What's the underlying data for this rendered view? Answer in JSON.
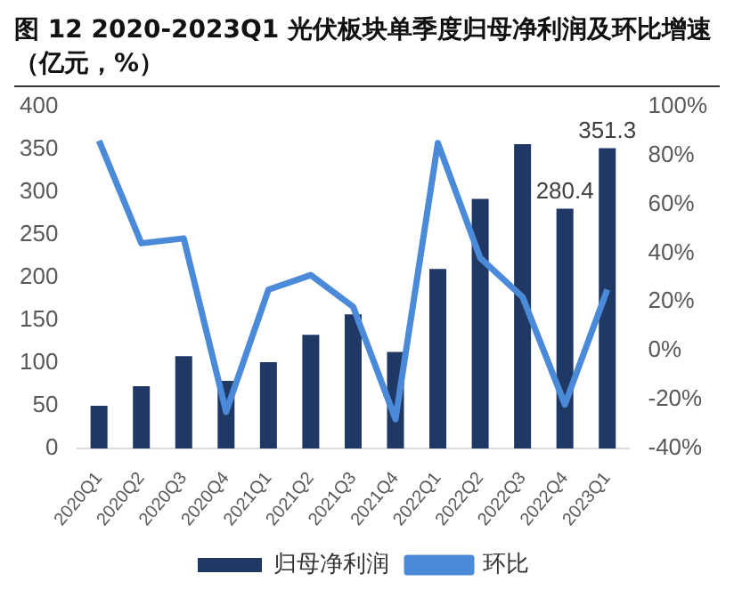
{
  "chart_data": {
    "type": "bar",
    "title": "图 12 2020-2023Q1 光伏板块单季度归母净利润及环比增速（亿元，%）",
    "categories": [
      "2020Q1",
      "2020Q2",
      "2020Q3",
      "2020Q4",
      "2021Q1",
      "2021Q2",
      "2021Q3",
      "2021Q4",
      "2022Q1",
      "2022Q2",
      "2022Q3",
      "2022Q4",
      "2023Q1"
    ],
    "series": [
      {
        "name": "归母净利润",
        "color": "#1f3864",
        "values": [
          50,
          73,
          108,
          79,
          101,
          133,
          157,
          113,
          210,
          292,
          356,
          280.4,
          351.3
        ],
        "value_labels": [
          null,
          null,
          null,
          null,
          null,
          null,
          null,
          null,
          null,
          null,
          null,
          "280.4",
          "351.3"
        ]
      },
      {
        "name": "环比",
        "type": "line",
        "axis": "y2",
        "color": "#4a8ad8",
        "values": [
          86,
          44,
          46,
          -25,
          25,
          31,
          18,
          -28,
          85,
          38,
          22,
          -22,
          25
        ]
      }
    ],
    "ylim": [
      0,
      400
    ],
    "yticks": [
      0,
      50,
      100,
      150,
      200,
      250,
      300,
      350,
      400
    ],
    "y2lim": [
      -40,
      100
    ],
    "y2ticks": [
      {
        "value": -40,
        "label": "-40%"
      },
      {
        "value": -20,
        "label": "-20%"
      },
      {
        "value": 0,
        "label": "0%"
      },
      {
        "value": 20,
        "label": "20%"
      },
      {
        "value": 40,
        "label": "40%"
      },
      {
        "value": 60,
        "label": "60%"
      },
      {
        "value": 80,
        "label": "80%"
      },
      {
        "value": 100,
        "label": "100%"
      }
    ],
    "grid": false,
    "legend": "bottom",
    "marker": "none"
  }
}
